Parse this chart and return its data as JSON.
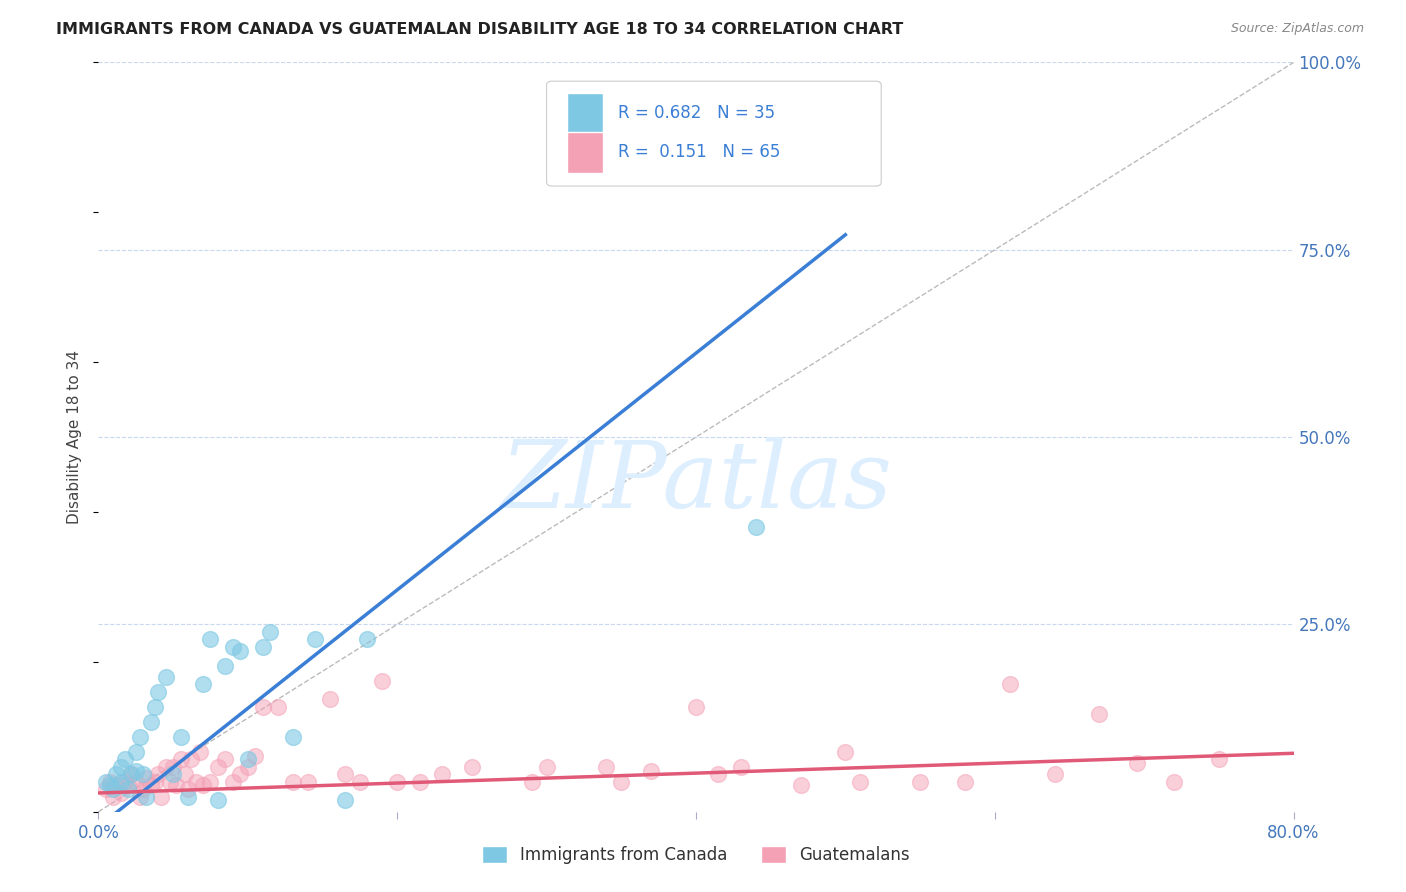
{
  "title": "IMMIGRANTS FROM CANADA VS GUATEMALAN DISABILITY AGE 18 TO 34 CORRELATION CHART",
  "source": "Source: ZipAtlas.com",
  "ylabel": "Disability Age 18 to 34",
  "xmin": 0.0,
  "xmax": 0.8,
  "ymin": 0.0,
  "ymax": 1.0,
  "x_ticks": [
    0.0,
    0.2,
    0.4,
    0.6,
    0.8
  ],
  "x_tick_labels": [
    "0.0%",
    "",
    "",
    "",
    "80.0%"
  ],
  "y_ticks": [
    0.0,
    0.25,
    0.5,
    0.75,
    1.0
  ],
  "y_tick_labels": [
    "",
    "25.0%",
    "50.0%",
    "75.0%",
    "100.0%"
  ],
  "canada_R": 0.682,
  "canada_N": 35,
  "guatemalan_R": 0.151,
  "guatemalan_N": 65,
  "canada_color": "#7ec8e3",
  "guatemalan_color": "#f4a0b5",
  "canada_line_color": "#3a7fd5",
  "guatemalan_line_color": "#e05a78",
  "diagonal_line_color": "#bbbbbb",
  "background_color": "#ffffff",
  "grid_color": "#c8d8ee",
  "watermark_text": "ZIPatlas",
  "watermark_color": "#ddeeff",
  "canada_line_x0": 0.0,
  "canada_line_y0": -0.02,
  "canada_line_x1": 0.5,
  "canada_line_y1": 0.77,
  "guatemalan_line_x0": 0.0,
  "guatemalan_line_y0": 0.025,
  "guatemalan_line_x1": 0.8,
  "guatemalan_line_y1": 0.078,
  "canada_scatter_x": [
    0.005,
    0.008,
    0.01,
    0.012,
    0.015,
    0.015,
    0.018,
    0.02,
    0.022,
    0.025,
    0.025,
    0.028,
    0.03,
    0.032,
    0.035,
    0.038,
    0.04,
    0.045,
    0.05,
    0.055,
    0.06,
    0.07,
    0.075,
    0.08,
    0.085,
    0.09,
    0.095,
    0.1,
    0.11,
    0.115,
    0.13,
    0.145,
    0.165,
    0.18,
    0.44
  ],
  "canada_scatter_y": [
    0.04,
    0.035,
    0.03,
    0.05,
    0.04,
    0.06,
    0.07,
    0.03,
    0.05,
    0.055,
    0.08,
    0.1,
    0.05,
    0.02,
    0.12,
    0.14,
    0.16,
    0.18,
    0.05,
    0.1,
    0.02,
    0.17,
    0.23,
    0.015,
    0.195,
    0.22,
    0.215,
    0.07,
    0.22,
    0.24,
    0.1,
    0.23,
    0.015,
    0.23,
    0.38
  ],
  "guatemalan_scatter_x": [
    0.005,
    0.008,
    0.01,
    0.012,
    0.015,
    0.018,
    0.02,
    0.022,
    0.025,
    0.028,
    0.03,
    0.032,
    0.035,
    0.038,
    0.04,
    0.042,
    0.045,
    0.048,
    0.05,
    0.052,
    0.055,
    0.058,
    0.06,
    0.062,
    0.065,
    0.068,
    0.07,
    0.075,
    0.08,
    0.085,
    0.09,
    0.095,
    0.1,
    0.105,
    0.11,
    0.12,
    0.13,
    0.14,
    0.155,
    0.165,
    0.175,
    0.19,
    0.2,
    0.215,
    0.23,
    0.25,
    0.29,
    0.3,
    0.34,
    0.35,
    0.37,
    0.4,
    0.415,
    0.43,
    0.47,
    0.5,
    0.51,
    0.55,
    0.58,
    0.61,
    0.64,
    0.67,
    0.695,
    0.72,
    0.75
  ],
  "guatemalan_scatter_y": [
    0.03,
    0.04,
    0.02,
    0.035,
    0.025,
    0.04,
    0.035,
    0.05,
    0.04,
    0.02,
    0.03,
    0.045,
    0.035,
    0.04,
    0.05,
    0.02,
    0.06,
    0.04,
    0.06,
    0.035,
    0.07,
    0.05,
    0.03,
    0.07,
    0.04,
    0.08,
    0.035,
    0.04,
    0.06,
    0.07,
    0.04,
    0.05,
    0.06,
    0.075,
    0.14,
    0.14,
    0.04,
    0.04,
    0.15,
    0.05,
    0.04,
    0.175,
    0.04,
    0.04,
    0.05,
    0.06,
    0.04,
    0.06,
    0.06,
    0.04,
    0.055,
    0.14,
    0.05,
    0.06,
    0.035,
    0.08,
    0.04,
    0.04,
    0.04,
    0.17,
    0.05,
    0.13,
    0.065,
    0.04,
    0.07
  ]
}
